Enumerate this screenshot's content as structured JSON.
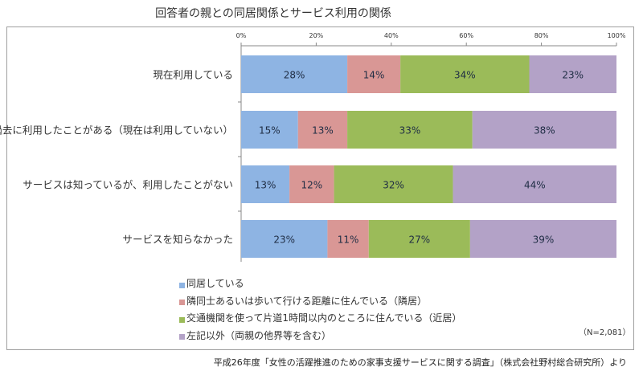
{
  "chart_data": {
    "type": "bar",
    "orientation": "horizontal",
    "stacked": "100%",
    "title": "回答者の親との同居関係とサービス利用の関係",
    "categories": [
      "現在利用している",
      "過去に利用したことがある（現在は利用していない）",
      "サービスは知っているが、利用したことがない",
      "サービスを知らなかった"
    ],
    "series": [
      {
        "name": "同居している",
        "color": "#8eb4e3",
        "values": [
          28,
          15,
          13,
          23
        ]
      },
      {
        "name": "隣同士あるいは歩いて行ける距離に住んでいる（隣居）",
        "color": "#d99795",
        "values": [
          14,
          13,
          12,
          11
        ]
      },
      {
        "name": "交通機関を使って片道1時間以内のところに住んでいる（近居）",
        "color": "#9bbb59",
        "values": [
          34,
          33,
          32,
          27
        ]
      },
      {
        "name": "左記以外（両親の他界等を含む）",
        "color": "#b3a2c7",
        "values": [
          23,
          38,
          44,
          39
        ]
      }
    ],
    "xlim": [
      0,
      100
    ],
    "xticks": [
      "0%",
      "20%",
      "40%",
      "60%",
      "80%",
      "100%"
    ],
    "axis_position": "top",
    "grid": false,
    "legend_placement": "bottom-left",
    "note": "（N=2,081）",
    "source": "平成26年度「女性の活躍推進のための家事支援サービスに関する調査」（株式会社野村総合研究所）より"
  }
}
